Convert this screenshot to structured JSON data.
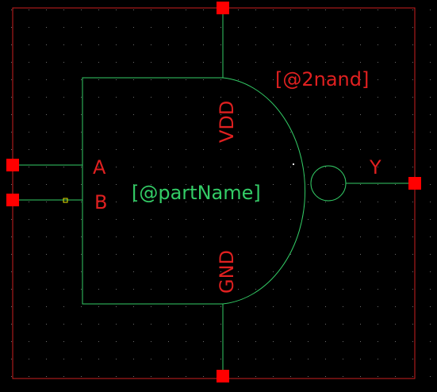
{
  "symbol": {
    "cell_name_label": "[@2nand]",
    "instance_label": "[@partName]"
  },
  "pins": {
    "a": {
      "label": "A"
    },
    "b": {
      "label": "B"
    },
    "y": {
      "label": "Y"
    },
    "vdd": {
      "label": "VDD"
    },
    "gnd": {
      "label": "GND"
    }
  },
  "colors": {
    "background": "#000000",
    "grid_dot": "#6b6b6b",
    "wire": "#33cc66",
    "pin": "#ff0000",
    "pin_label": "#e02020",
    "bounding_box": "#cc1f1f",
    "instance_text": "#33cc66",
    "cursor_marker": "#e6e600"
  },
  "icons": {
    "pin_marker": "red-square-icon",
    "inversion_bubble": "circle-icon"
  }
}
